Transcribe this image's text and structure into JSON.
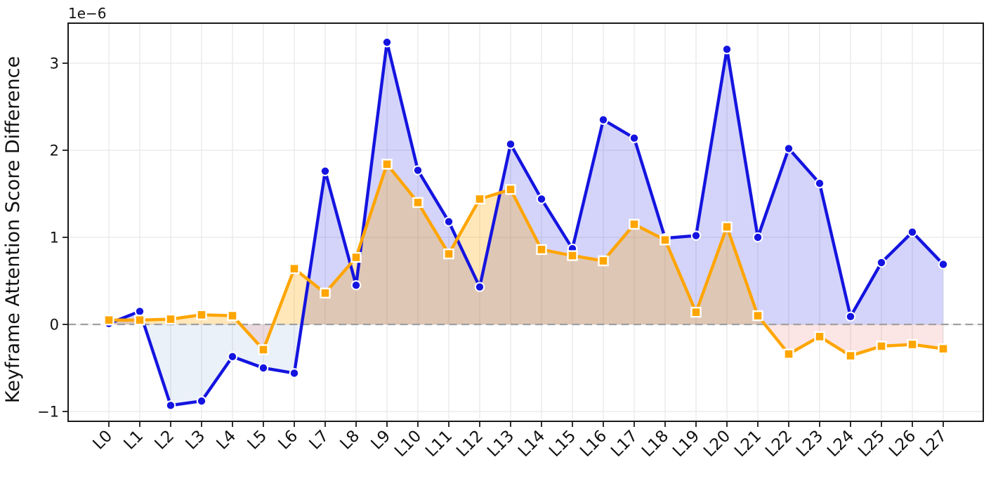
{
  "chart_data": {
    "type": "line",
    "ylabel": "Keyframe Attention Score Difference",
    "y_offset_label": "1e−6",
    "categories": [
      "L0",
      "L1",
      "L2",
      "L3",
      "L4",
      "L5",
      "L6",
      "L7",
      "L8",
      "L9",
      "L10",
      "L11",
      "L12",
      "L13",
      "L14",
      "L15",
      "L16",
      "L17",
      "L18",
      "L19",
      "L20",
      "L21",
      "L22",
      "L23",
      "L24",
      "L25",
      "L26",
      "L27"
    ],
    "series": [
      {
        "name": "blue-circle-series",
        "marker": "circle",
        "color": "#1414e0",
        "values": [
          0.01,
          0.15,
          -0.93,
          -0.88,
          -0.37,
          -0.5,
          -0.56,
          1.76,
          0.45,
          3.24,
          1.77,
          1.18,
          0.43,
          2.07,
          1.44,
          0.87,
          2.35,
          2.14,
          0.99,
          1.02,
          3.16,
          1.0,
          2.02,
          1.62,
          0.09,
          0.71,
          1.06,
          0.69
        ]
      },
      {
        "name": "orange-square-series",
        "marker": "square",
        "color": "#ffa500",
        "values": [
          0.05,
          0.05,
          0.06,
          0.11,
          0.1,
          -0.29,
          0.64,
          0.36,
          0.77,
          1.84,
          1.4,
          0.81,
          1.44,
          1.55,
          0.86,
          0.79,
          0.73,
          1.15,
          0.97,
          0.14,
          1.12,
          0.1,
          -0.34,
          -0.14,
          -0.36,
          -0.25,
          -0.23,
          -0.28
        ]
      }
    ],
    "yticks": [
      {
        "value": -1,
        "label": "−1"
      },
      {
        "value": 0,
        "label": "0"
      },
      {
        "value": 1,
        "label": "1"
      },
      {
        "value": 2,
        "label": "2"
      },
      {
        "value": 3,
        "label": "3"
      }
    ],
    "ylim": [
      -1.11,
      3.46
    ],
    "grid": true,
    "legend": "none",
    "zero_line": {
      "style": "dashed",
      "color": "#a0a0a0"
    },
    "colors": {
      "blue_line": "#1414e0",
      "orange_line": "#ffa500",
      "fill_blue_positive": "rgba(40,40,230,0.20)",
      "fill_blue_negative": "rgba(100,150,200,0.13)",
      "fill_orange_positive": "rgba(255,165,0,0.27)",
      "fill_orange_negative": "rgba(230,80,80,0.15)",
      "gridline": "#e8e8e8",
      "spine": "#1a1a1a"
    }
  }
}
